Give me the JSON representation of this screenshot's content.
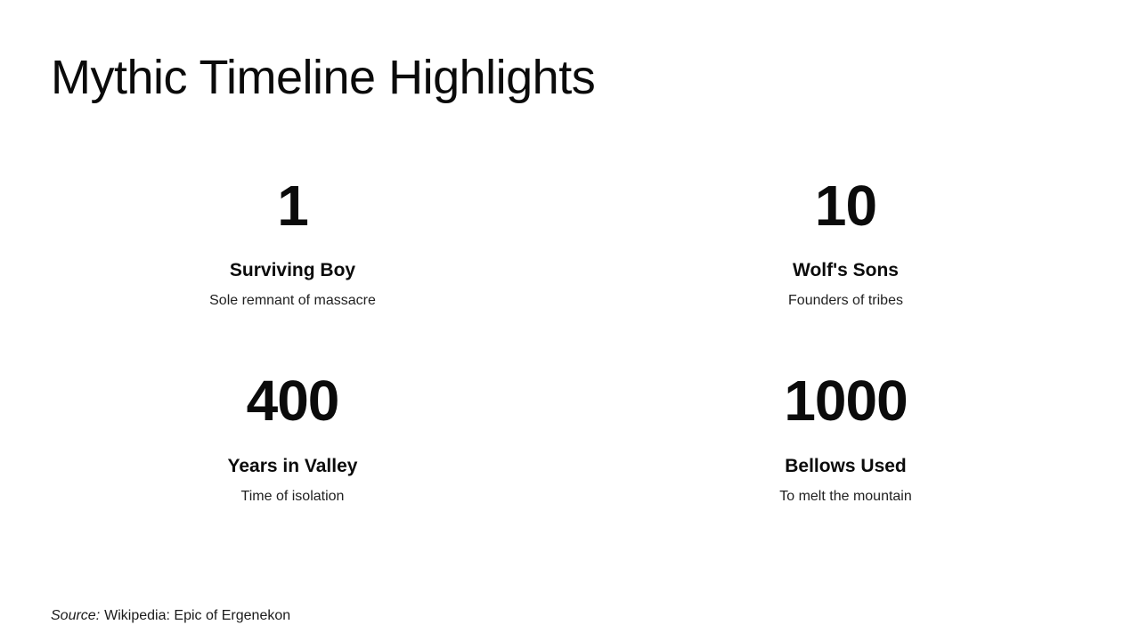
{
  "title": "Mythic Timeline Highlights",
  "stats": [
    {
      "value": "1",
      "label": "Surviving Boy",
      "description": "Sole remnant of massacre"
    },
    {
      "value": "10",
      "label": "Wolf's Sons",
      "description": "Founders of tribes"
    },
    {
      "value": "400",
      "label": "Years in Valley",
      "description": "Time of isolation"
    },
    {
      "value": "1000",
      "label": "Bellows Used",
      "description": "To melt the mountain"
    }
  ],
  "source": {
    "prefix": "Source:",
    "text": "Wikipedia: Epic of Ergenekon"
  },
  "colors": {
    "background": "#ffffff",
    "text_primary": "#0b0b0b",
    "text_secondary": "#212121"
  }
}
